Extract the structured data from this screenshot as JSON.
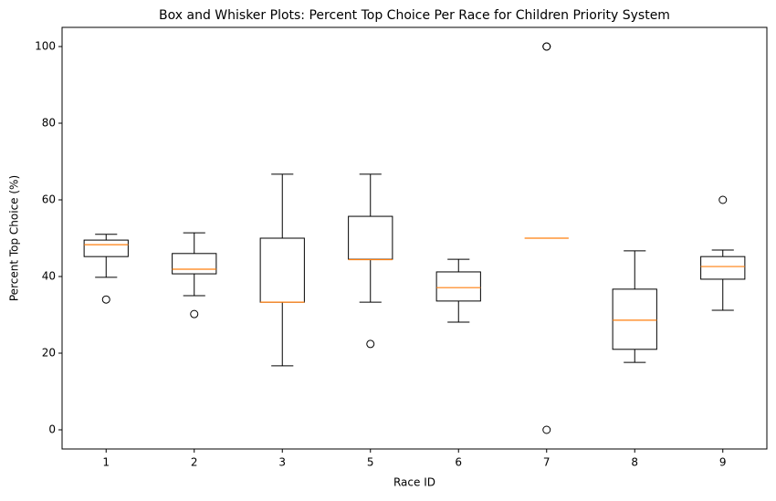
{
  "chart_data": {
    "type": "box",
    "title": "Box and Whisker Plots: Percent Top Choice Per Race for Children Priority System",
    "x_label": "Race ID",
    "y_label": "Percent Top Choice (%)",
    "categories": [
      "1",
      "2",
      "3",
      "5",
      "6",
      "7",
      "8",
      "9"
    ],
    "min": [
      39.8,
      35,
      16.7,
      33.3,
      28.1,
      50,
      17.6,
      31.2
    ],
    "q1": [
      45.2,
      40.7,
      33.3,
      44.5,
      33.6,
      50,
      21,
      39.3
    ],
    "median": [
      48.3,
      41.9,
      33.3,
      44.4,
      37.1,
      50,
      28.6,
      42.6
    ],
    "q3": [
      49.5,
      46,
      50,
      55.7,
      41.2,
      50,
      36.7,
      45.2
    ],
    "max": [
      51,
      51.4,
      66.7,
      66.7,
      44.5,
      50,
      46.7,
      46.9
    ],
    "outliers": [
      [
        34
      ],
      [
        30.2
      ],
      [],
      [
        22.4
      ],
      [],
      [
        100,
        100,
        0
      ],
      [],
      [
        60
      ]
    ],
    "box_color": "#000000",
    "median_color": "#ff7f0e",
    "ylim": [
      -5,
      105
    ],
    "yticks": [
      0,
      20,
      40,
      60,
      80,
      100
    ]
  }
}
